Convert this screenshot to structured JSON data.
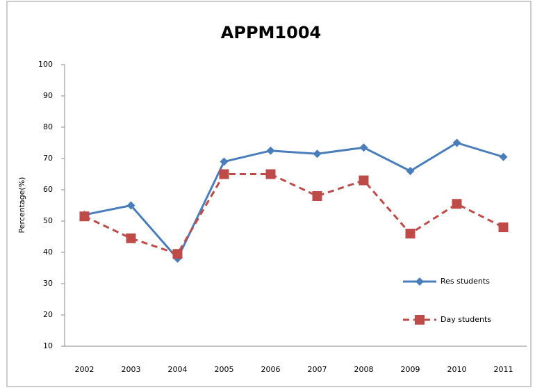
{
  "chart_data": {
    "type": "line",
    "title": "APPM1004",
    "y_label": "Percentage(%)",
    "categories": [
      "2002",
      "2003",
      "2004",
      "2005",
      "2006",
      "2007",
      "2008",
      "2009",
      "2010",
      "2011"
    ],
    "series": [
      {
        "name": "Res students",
        "color": "#4a7ebb",
        "marker": "diamond",
        "dash": false,
        "values": [
          52,
          55,
          38,
          69,
          72.5,
          71.5,
          73.5,
          66,
          75,
          70.5
        ]
      },
      {
        "name": "Day students",
        "color": "#be4b48",
        "marker": "square",
        "dash": true,
        "values": [
          51.5,
          44.5,
          39.5,
          65,
          65,
          58,
          63,
          46,
          55.5,
          48
        ]
      }
    ],
    "ylim": [
      10,
      100
    ],
    "yticks": [
      10,
      20,
      30,
      40,
      50,
      60,
      70,
      80,
      90,
      100
    ],
    "grid": false,
    "legend": "right"
  }
}
